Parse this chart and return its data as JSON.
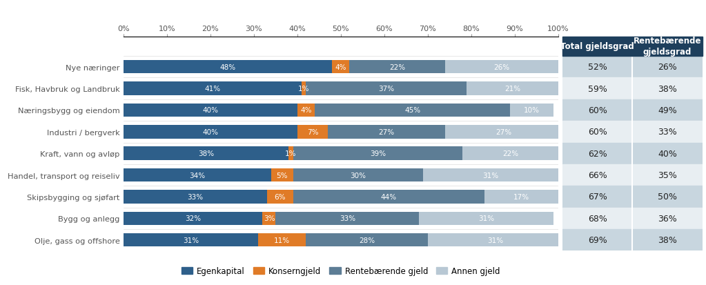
{
  "categories": [
    "Nye næringer",
    "Fisk, Havbruk og Landbruk",
    "Næringsbygg og eiendom",
    "Industri / bergverk",
    "Kraft, vann og avløp",
    "Handel, transport og reiseliv",
    "Skipsbygging og sjøfart",
    "Bygg og anlegg",
    "Olje, gass og offshore"
  ],
  "egenkapital": [
    48,
    41,
    40,
    40,
    38,
    34,
    33,
    32,
    31
  ],
  "konserngjeld": [
    4,
    1,
    4,
    7,
    1,
    5,
    6,
    3,
    11
  ],
  "rentebærende": [
    22,
    37,
    45,
    27,
    39,
    30,
    44,
    33,
    28
  ],
  "annen_gjeld": [
    26,
    21,
    10,
    27,
    22,
    31,
    17,
    31,
    31
  ],
  "total_gjeldsgrad": [
    "52%",
    "59%",
    "60%",
    "60%",
    "62%",
    "66%",
    "67%",
    "68%",
    "69%"
  ],
  "rente_gjeldsgrad": [
    "26%",
    "38%",
    "49%",
    "33%",
    "40%",
    "35%",
    "50%",
    "36%",
    "38%"
  ],
  "color_egenkapital": "#2e5f8a",
  "color_konserngjeld": "#e07b27",
  "color_rentebærende": "#5d7d95",
  "color_annen_gjeld": "#b8c8d4",
  "col_header_bg": "#1e3f5c",
  "col_row_bg_dark": "#c8d6df",
  "col_row_bg_light": "#e8eef2",
  "bar_text_color": "#ffffff",
  "axis_text_color": "#555555",
  "background_color": "#ffffff"
}
